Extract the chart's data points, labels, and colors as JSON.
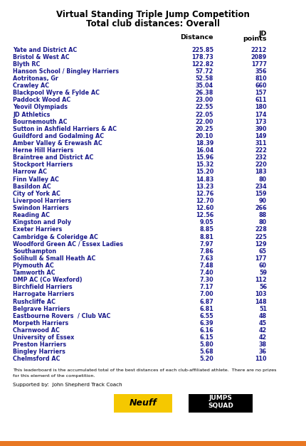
{
  "title1": "Virtual Standing Triple Jump Competition",
  "title2": "Total club distances: Overall",
  "clubs": [
    "Yate and District AC",
    "Bristol & West AC",
    "Blyth RC",
    "Hanson School / Bingley Harriers",
    "Aotritonas, Gr",
    "Crawley AC",
    "Blackpool Wyre & Fylde AC",
    "Paddock Wood AC",
    "Yeovil Olympiads",
    "JD Athletics",
    "Bournemouth AC",
    "Sutton in Ashfield Harriers & AC",
    "Guildford and Godalming AC",
    "Amber Valley & Erewash AC",
    "Herne Hill Harriers",
    "Braintree and District AC",
    "Stockport Harriers",
    "Harrow AC",
    "Finn Valley AC",
    "Basildon AC",
    "City of York AC",
    "Liverpool Harriers",
    "Swindon Harriers",
    "Reading AC",
    "Kingston and Poly",
    "Exeter Harriers",
    "Cambridge & Coleridge AC",
    "Woodford Green AC / Essex Ladies",
    "Southampton",
    "Solihull & Small Heath AC",
    "Plymouth AC",
    "Tamworth AC",
    "DMP AC (Co Wexford)",
    "Birchfield Harriers",
    "Harrogate Harriers",
    "Rushcliffe AC",
    "Belgrave Harriers",
    "Eastbourne Rovers  / Club VAC",
    "Morpeth Harriers",
    "Charnwood AC",
    "University of Essex",
    "Preston Harriers",
    "Bingley Harriers",
    "Chelmsford AC"
  ],
  "distances": [
    225.85,
    178.73,
    122.82,
    57.72,
    52.58,
    35.04,
    26.38,
    23.0,
    22.55,
    22.05,
    22.0,
    20.25,
    20.1,
    18.39,
    16.04,
    15.96,
    15.32,
    15.2,
    14.83,
    13.23,
    12.76,
    12.7,
    12.6,
    12.56,
    9.05,
    8.85,
    8.81,
    7.97,
    7.86,
    7.63,
    7.48,
    7.4,
    7.3,
    7.17,
    7.0,
    6.87,
    6.81,
    6.55,
    6.39,
    6.16,
    6.15,
    5.8,
    5.68,
    5.2
  ],
  "jd_points": [
    2212,
    2089,
    1777,
    356,
    810,
    660,
    157,
    611,
    180,
    174,
    173,
    390,
    149,
    311,
    222,
    232,
    220,
    183,
    80,
    234,
    159,
    90,
    266,
    88,
    80,
    228,
    225,
    129,
    65,
    177,
    60,
    59,
    112,
    56,
    103,
    148,
    51,
    48,
    45,
    42,
    42,
    38,
    36,
    110
  ],
  "footnote1": "This leaderboard is the accumulated total of the best distances of each club-affiliated athlete.  There are no prizes",
  "footnote2": "for this element of the competition.",
  "support_text": "Supported by:  John Shepherd Track Coach",
  "bg_color": "#ffffff",
  "title_color": "#000000",
  "header_color": "#000000",
  "row_text_color": "#1a1a8c",
  "orange_color": "#e87722",
  "neuff_bg": "#f5c800",
  "title_fontsize": 8.5,
  "header_fontsize": 6.8,
  "row_fontsize": 5.8,
  "footnote_fontsize": 4.6,
  "support_fontsize": 5.2
}
